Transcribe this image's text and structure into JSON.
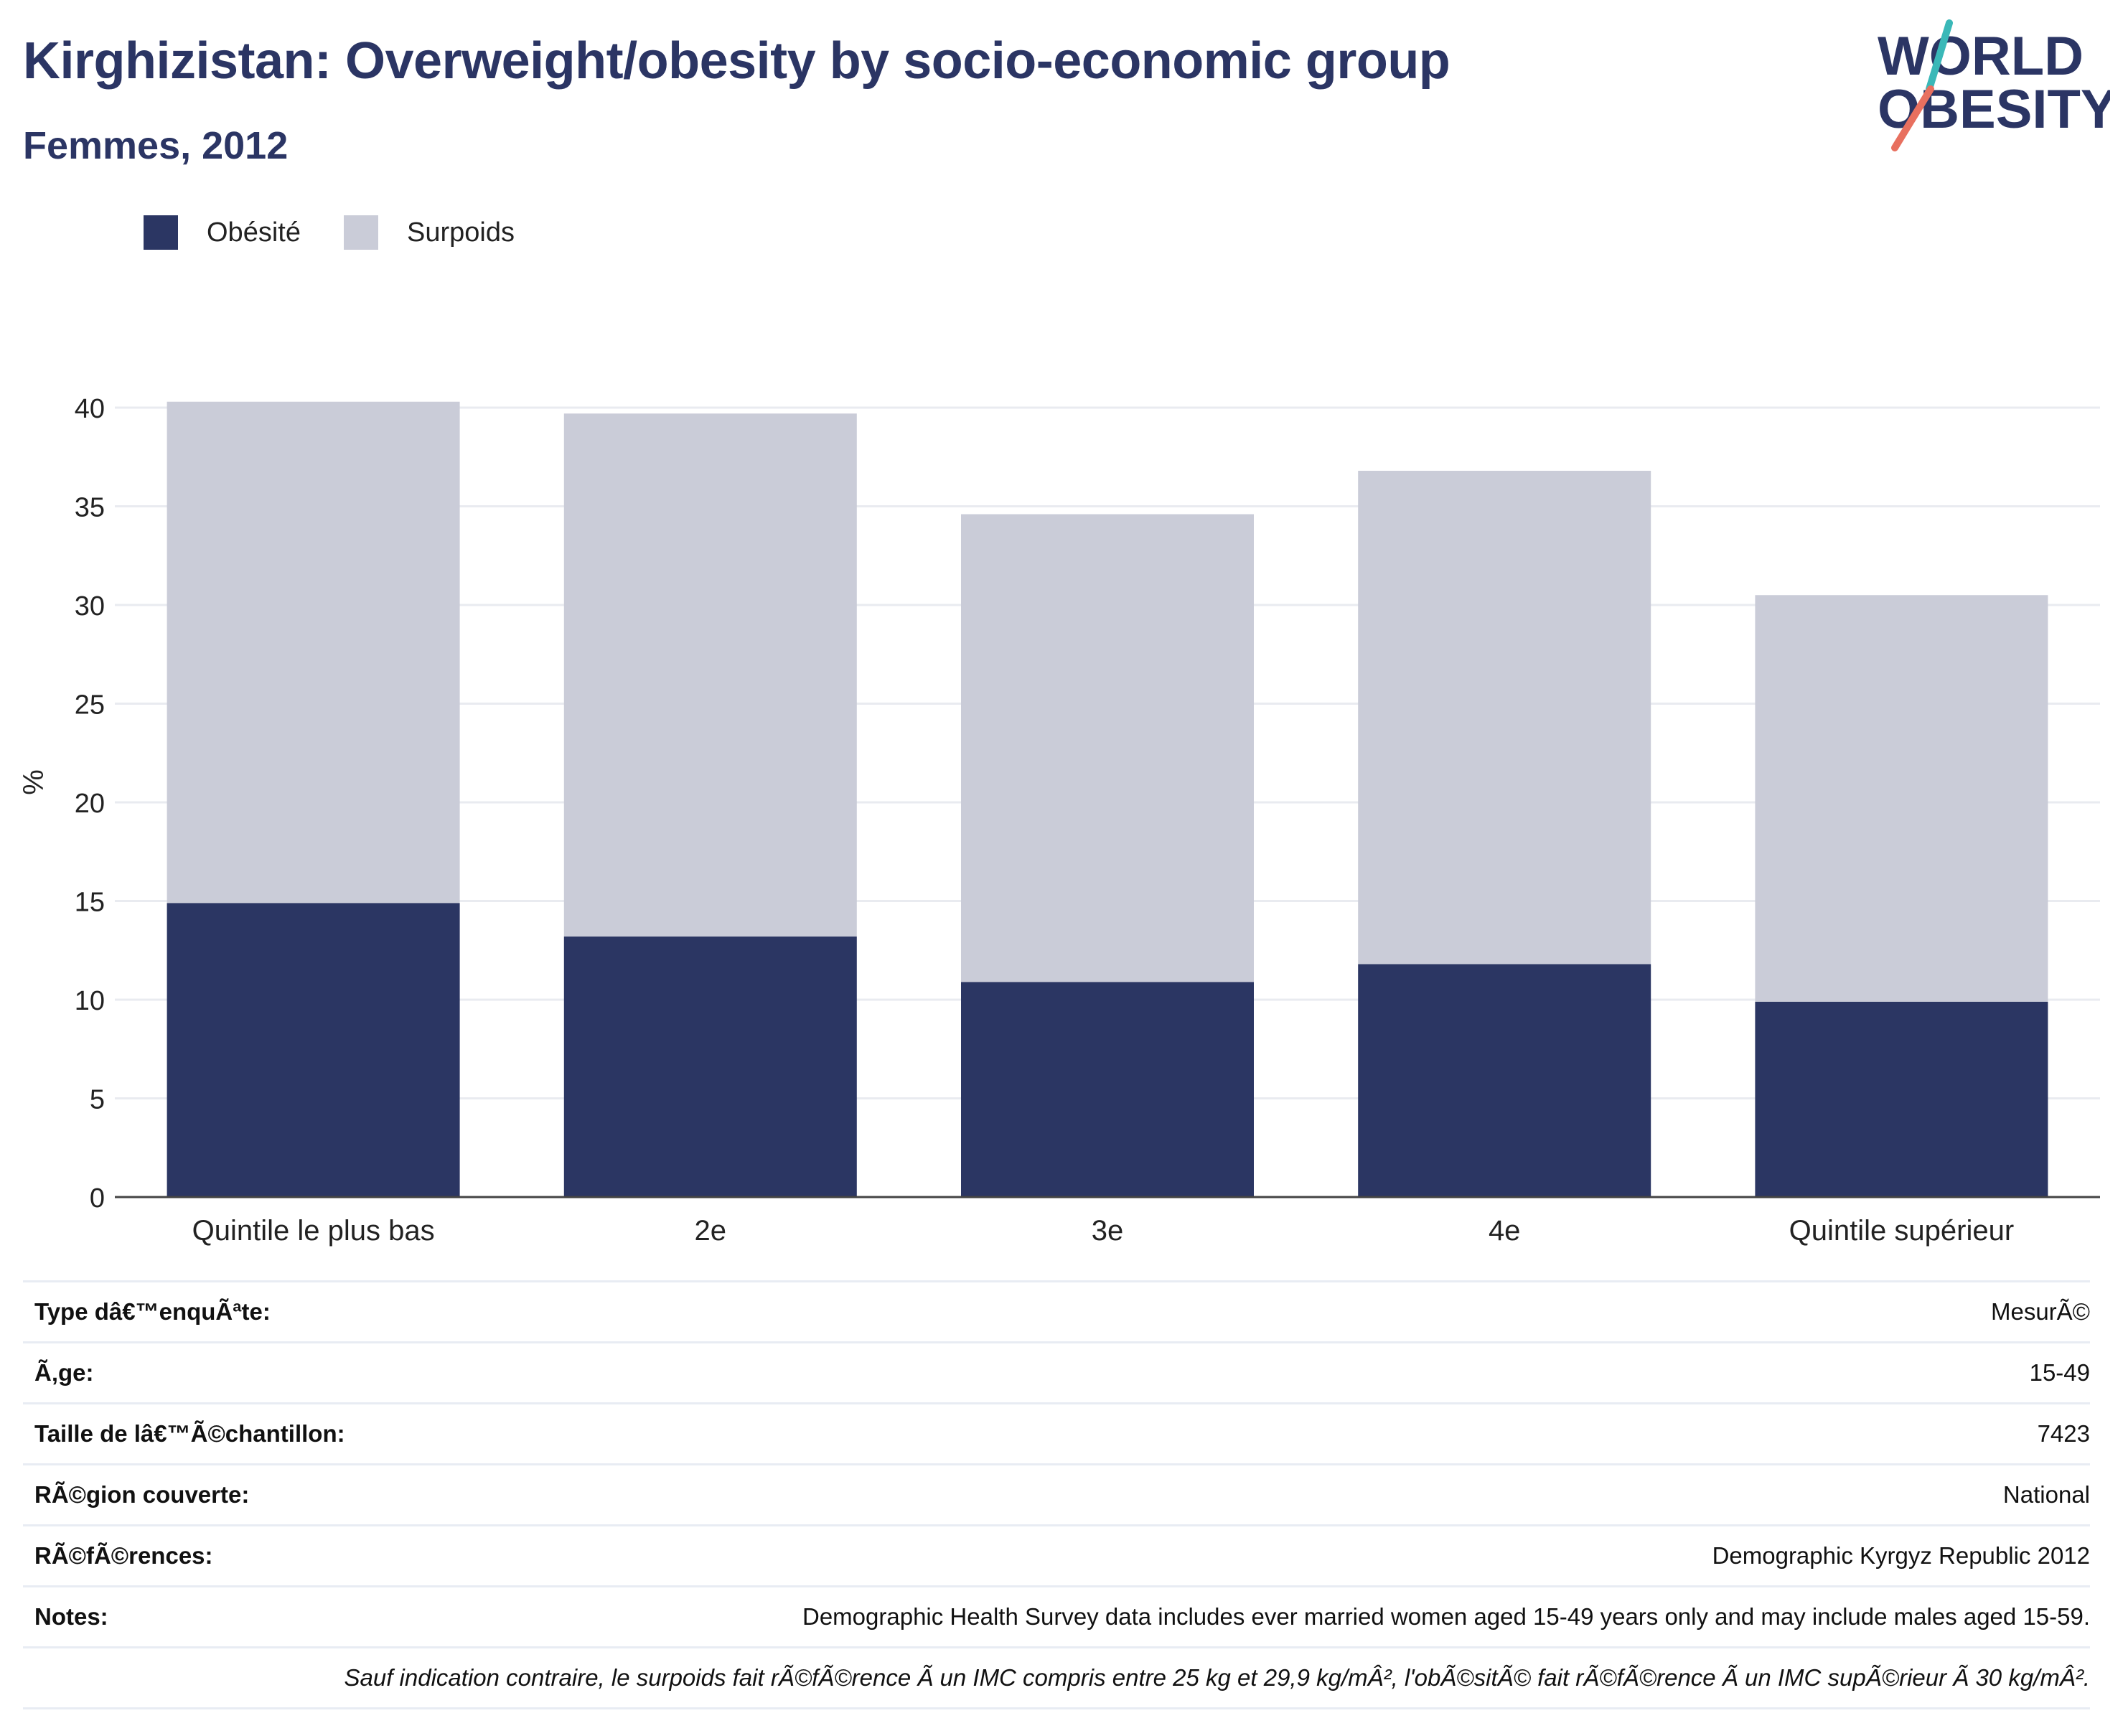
{
  "title": "Kirghizistan: Overweight/obesity by socio-economic group",
  "subtitle": "Femmes, 2012",
  "logo": {
    "line1": "WORLD",
    "line2": "OBESITY",
    "slash_colors": [
      "#3ab8b8",
      "#e8705f"
    ]
  },
  "legend": [
    {
      "label": "Obésité",
      "color": "#2b3663"
    },
    {
      "label": "Surpoids",
      "color": "#caccd8"
    }
  ],
  "chart_data": {
    "type": "bar",
    "stacked": true,
    "title": "Kirghizistan: Overweight/obesity by socio-economic group",
    "subtitle": "Femmes, 2012",
    "categories": [
      "Quintile le plus bas",
      "2e",
      "3e",
      "4e",
      "Quintile supérieur"
    ],
    "series": [
      {
        "name": "Obésité",
        "values": [
          14.9,
          13.2,
          10.9,
          11.8,
          9.9
        ],
        "color": "#2b3663"
      },
      {
        "name": "Surpoids",
        "values": [
          25.4,
          26.5,
          23.7,
          25.0,
          20.6
        ],
        "color": "#caccd8"
      }
    ],
    "xlabel": "",
    "ylabel": "%",
    "ylim": [
      0,
      40
    ],
    "yticks": [
      0,
      5,
      10,
      15,
      20,
      25,
      30,
      35,
      40
    ],
    "grid": true,
    "legend_position": "top-left"
  },
  "info_rows": [
    {
      "key": "Type dâ€™enquÃªte:",
      "value": "MesurÃ©"
    },
    {
      "key": "Ã‚ge:",
      "value": "15-49"
    },
    {
      "key": "Taille de lâ€™Ã©chantillon:",
      "value": "7423"
    },
    {
      "key": "RÃ©gion couverte:",
      "value": "National"
    },
    {
      "key": "RÃ©fÃ©rences:",
      "value": "Demographic Kyrgyz Republic 2012"
    },
    {
      "key": "Notes:",
      "value": "Demographic Health Survey data includes ever married women aged 15-49 years only and may include males aged 15-59."
    }
  ],
  "footnote": "Sauf indication contraire, le surpoids fait rÃ©fÃ©rence Ã  un IMC compris entre 25 kg et 29,9 kg/mÂ², l'obÃ©sitÃ© fait rÃ©fÃ©rence Ã  un IMC supÃ©rieur Ã  30 kg/mÂ²."
}
